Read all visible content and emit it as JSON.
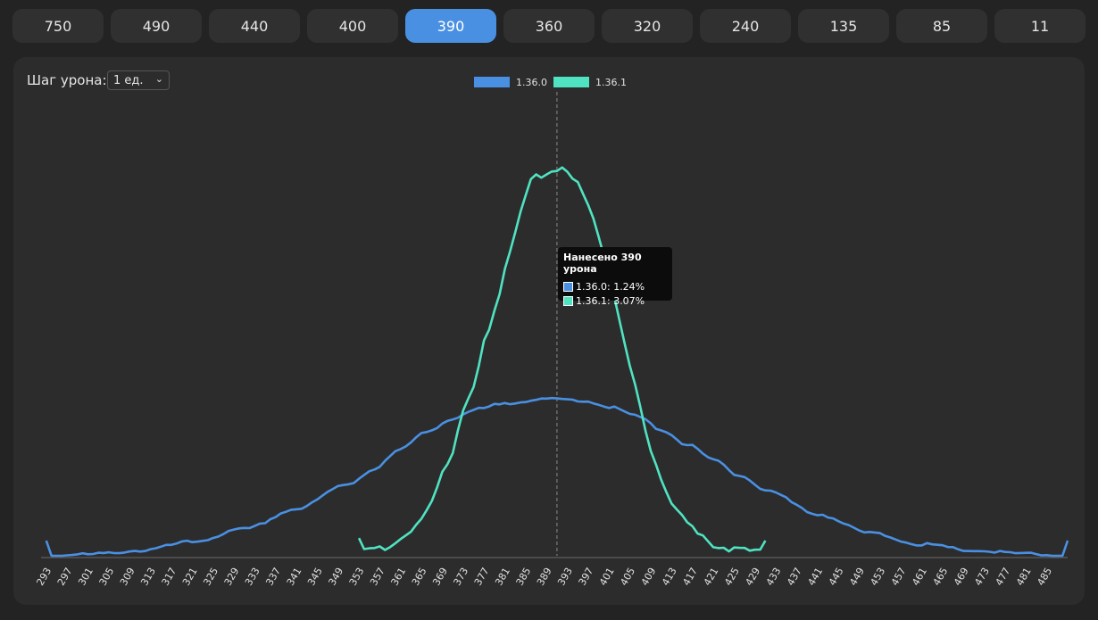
{
  "tabs": [
    {
      "label": "750"
    },
    {
      "label": "490"
    },
    {
      "label": "440"
    },
    {
      "label": "400"
    },
    {
      "label": "390",
      "active": true
    },
    {
      "label": "360"
    },
    {
      "label": "320"
    },
    {
      "label": "240"
    },
    {
      "label": "135"
    },
    {
      "label": "85"
    },
    {
      "label": "11"
    }
  ],
  "controls": {
    "step_label": "Шаг урона:",
    "step_value": "1 ед."
  },
  "tooltip": {
    "title": "Нанесено 390 урона",
    "rows": [
      {
        "text": "1.36.0: 1.24%",
        "color": "#4a90e2"
      },
      {
        "text": "1.36.1: 3.07%",
        "color": "#50e3c2"
      }
    ]
  },
  "chart_data": {
    "type": "line",
    "title": "",
    "xlabel": "",
    "ylabel": "",
    "x_range": [
      291,
      488
    ],
    "x_tick_labels": [
      293,
      297,
      301,
      305,
      309,
      313,
      317,
      321,
      325,
      329,
      333,
      337,
      341,
      345,
      349,
      353,
      357,
      361,
      365,
      369,
      373,
      377,
      381,
      385,
      389,
      393,
      397,
      401,
      405,
      409,
      413,
      417,
      421,
      425,
      429,
      433,
      437,
      441,
      445,
      449,
      453,
      457,
      461,
      465,
      469,
      473,
      477,
      481,
      485
    ],
    "ylim": [
      0,
      3.2
    ],
    "legend_position": "top-center",
    "hover_x": 390,
    "series": [
      {
        "name": "1.36.0",
        "color": "#4a90e2",
        "range": [
          292,
          488
        ],
        "points": [
          [
            292,
            0.12
          ],
          [
            293,
            0.0
          ],
          [
            300,
            0.01
          ],
          [
            310,
            0.04
          ],
          [
            320,
            0.11
          ],
          [
            330,
            0.21
          ],
          [
            340,
            0.37
          ],
          [
            350,
            0.57
          ],
          [
            355,
            0.69
          ],
          [
            360,
            0.84
          ],
          [
            365,
            0.99
          ],
          [
            370,
            1.08
          ],
          [
            375,
            1.16
          ],
          [
            380,
            1.21
          ],
          [
            385,
            1.23
          ],
          [
            390,
            1.24
          ],
          [
            395,
            1.23
          ],
          [
            400,
            1.18
          ],
          [
            405,
            1.11
          ],
          [
            410,
            1.0
          ],
          [
            415,
            0.88
          ],
          [
            420,
            0.76
          ],
          [
            425,
            0.64
          ],
          [
            430,
            0.52
          ],
          [
            440,
            0.33
          ],
          [
            450,
            0.18
          ],
          [
            460,
            0.09
          ],
          [
            470,
            0.04
          ],
          [
            480,
            0.015
          ],
          [
            487,
            0.0
          ],
          [
            488,
            0.12
          ]
        ]
      },
      {
        "name": "1.36.1",
        "color": "#50e3c2",
        "range": [
          352,
          430
        ],
        "points": [
          [
            352,
            0.14
          ],
          [
            353,
            0.03
          ],
          [
            357,
            0.07
          ],
          [
            361,
            0.17
          ],
          [
            365,
            0.35
          ],
          [
            369,
            0.7
          ],
          [
            373,
            1.25
          ],
          [
            377,
            1.8
          ],
          [
            379,
            2.1
          ],
          [
            381,
            2.4
          ],
          [
            383,
            2.7
          ],
          [
            385,
            2.97
          ],
          [
            387,
            3.02
          ],
          [
            389,
            3.06
          ],
          [
            390,
            3.07
          ],
          [
            391,
            3.1
          ],
          [
            393,
            3.0
          ],
          [
            395,
            2.86
          ],
          [
            397,
            2.65
          ],
          [
            399,
            2.36
          ],
          [
            401,
            2.04
          ],
          [
            403,
            1.7
          ],
          [
            405,
            1.36
          ],
          [
            407,
            1.0
          ],
          [
            409,
            0.7
          ],
          [
            411,
            0.48
          ],
          [
            413,
            0.34
          ],
          [
            417,
            0.18
          ],
          [
            421,
            0.08
          ],
          [
            425,
            0.04
          ],
          [
            429,
            0.02
          ],
          [
            430,
            0.12
          ]
        ]
      }
    ]
  }
}
